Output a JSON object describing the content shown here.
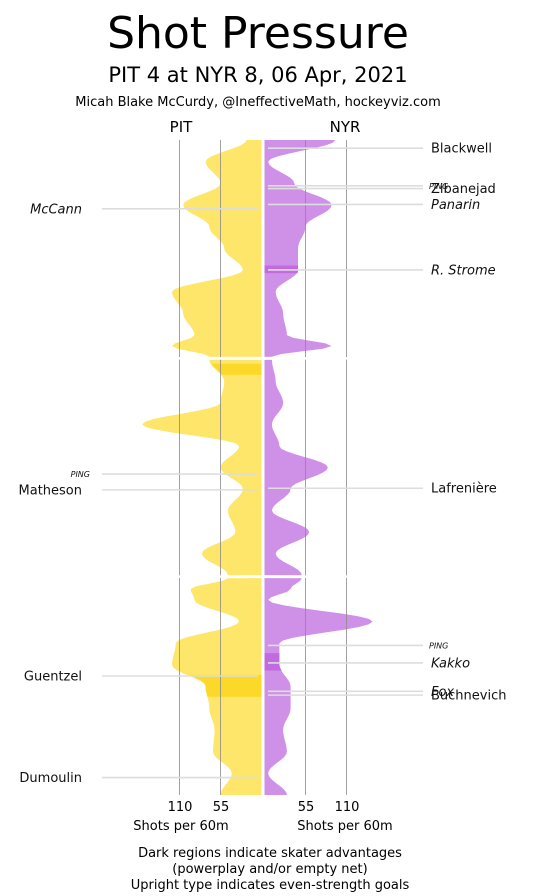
{
  "title": "Shot Pressure",
  "subtitle": "PIT 4 at NYR 8, 06 Apr, 2021",
  "credit": "Micah Blake McCurdy, @IneffectiveMath, hockeyviz.com",
  "colors": {
    "pit": "#fde24f",
    "pit_dark": "#fcd928",
    "nyr": "#c77ee3",
    "nyr_dark": "#c26be0",
    "grid": "#8a8a8a",
    "goal_line": "#dddddd"
  },
  "footnote": [
    "Dark regions indicate skater advantages",
    "(powerplay and/or empty net)",
    "Upright type indicates even-strength goals"
  ],
  "chart_data": {
    "type": "area",
    "teams": {
      "left": "PIT",
      "right": "NYR"
    },
    "axis": {
      "left_ticks": [
        "110",
        "55"
      ],
      "right_ticks": [
        "55",
        "110"
      ],
      "left_label": "Shots per 60m",
      "right_label": "Shots per 60m",
      "xlim": [
        0,
        115
      ]
    },
    "periods": 3,
    "time_axis_minutes": [
      0,
      60
    ],
    "series": [
      {
        "name": "PIT",
        "side": "left",
        "time": [
          0,
          2,
          4,
          6,
          8,
          10,
          12,
          14,
          16,
          18,
          19,
          20,
          22,
          24,
          26,
          28,
          30,
          32,
          34,
          36,
          38,
          40,
          41,
          42,
          44,
          46,
          48,
          50,
          52,
          54,
          56,
          58,
          60
        ],
        "values": [
          20,
          75,
          55,
          105,
          70,
          50,
          25,
          120,
          105,
          90,
          120,
          70,
          50,
          55,
          160,
          30,
          55,
          25,
          45,
          35,
          80,
          45,
          95,
          90,
          30,
          115,
          120,
          75,
          70,
          63,
          65,
          40,
          55
        ]
      },
      {
        "name": "NYR",
        "side": "right",
        "time": [
          0,
          2,
          4,
          6,
          8,
          10,
          12,
          14,
          16,
          18,
          19,
          20,
          22,
          24,
          26,
          28,
          30,
          32,
          34,
          36,
          38,
          40,
          41,
          42,
          44,
          46,
          48,
          50,
          52,
          54,
          56,
          58,
          60
        ],
        "values": [
          95,
          5,
          40,
          90,
          55,
          45,
          45,
          15,
          25,
          30,
          90,
          10,
          15,
          25,
          10,
          20,
          85,
          35,
          10,
          60,
          15,
          50,
          35,
          5,
          145,
          20,
          20,
          35,
          35,
          25,
          30,
          5,
          30
        ]
      }
    ],
    "advantages": [
      {
        "side": "left",
        "from": 20.5,
        "to": 21.5
      },
      {
        "side": "left",
        "from": 49.0,
        "to": 51.0
      },
      {
        "side": "right",
        "from": 47.0,
        "to": 48.6
      },
      {
        "side": "right",
        "from": 11.5,
        "to": 12.2
      }
    ],
    "goals": [
      {
        "team": "NYR",
        "scorer": "Blackwell",
        "time": 0.75,
        "even_strength": true
      },
      {
        "team": "NYR",
        "scorer": "PING",
        "time": 4.2,
        "even_strength": true,
        "kind": "ping"
      },
      {
        "team": "NYR",
        "scorer": "Zibanejad",
        "time": 4.45,
        "even_strength": true
      },
      {
        "team": "NYR",
        "scorer": "Panarin",
        "time": 5.9,
        "even_strength": false
      },
      {
        "team": "PIT",
        "scorer": "McCann",
        "time": 6.3,
        "even_strength": false
      },
      {
        "team": "NYR",
        "scorer": "R. Strome",
        "time": 11.9,
        "even_strength": false
      },
      {
        "team": "PIT",
        "scorer": "PING",
        "time": 30.6,
        "even_strength": true,
        "kind": "ping"
      },
      {
        "team": "PIT",
        "scorer": "Matheson",
        "time": 32.05,
        "even_strength": true
      },
      {
        "team": "NYR",
        "scorer": "Lafrenière",
        "time": 31.9,
        "even_strength": true
      },
      {
        "team": "NYR",
        "scorer": "PING",
        "time": 46.3,
        "even_strength": true,
        "kind": "ping"
      },
      {
        "team": "NYR",
        "scorer": "Kakko",
        "time": 47.9,
        "even_strength": false
      },
      {
        "team": "PIT",
        "scorer": "Guentzel",
        "time": 49.1,
        "even_strength": true
      },
      {
        "team": "NYR",
        "scorer": "Fox",
        "time": 50.5,
        "even_strength": false
      },
      {
        "team": "NYR",
        "scorer": "Buchnevich",
        "time": 50.85,
        "even_strength": true
      },
      {
        "team": "PIT",
        "scorer": "Dumoulin",
        "time": 58.4,
        "even_strength": true
      }
    ]
  }
}
